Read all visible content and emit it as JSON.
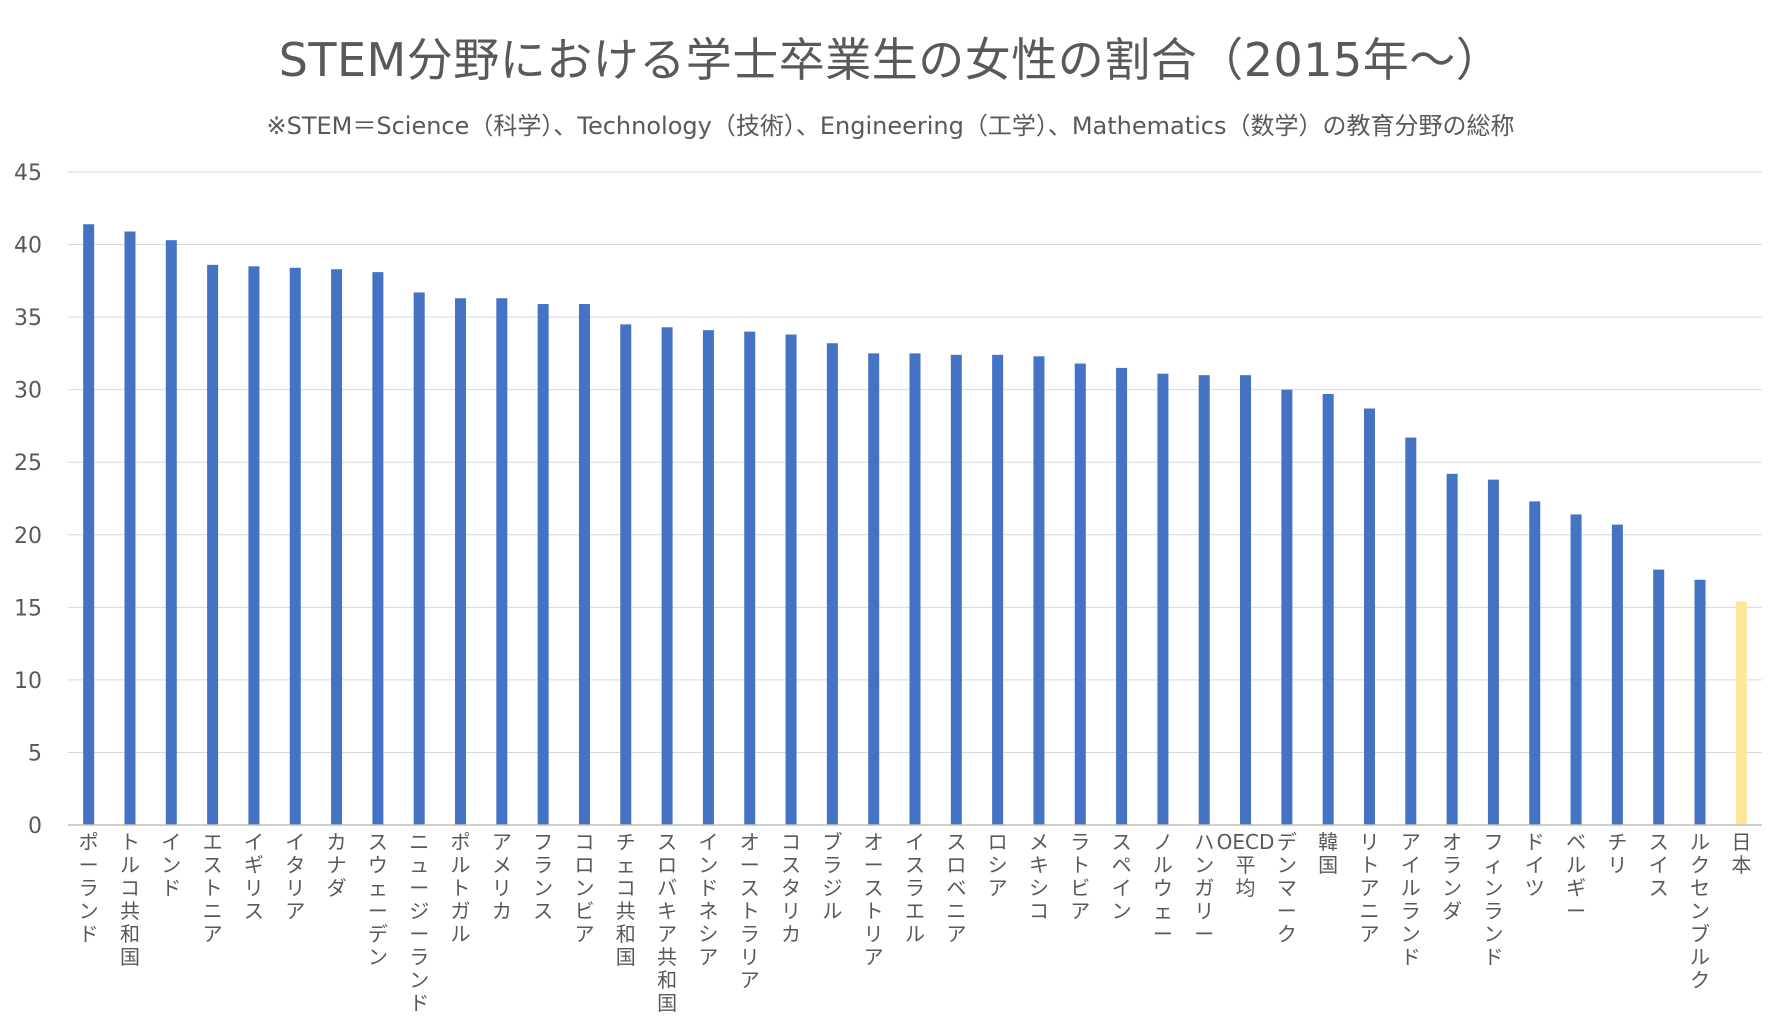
{
  "chart_data": {
    "type": "bar",
    "title": "STEM分野における学士卒業生の女性の割合（2015年～）",
    "subtitle": "※STEM＝Science（科学）、Technology（技術）、Engineering（工学）、Mathematics（数学）の教育分野の総称",
    "ylim": [
      0,
      45
    ],
    "yticks": [
      0,
      5,
      10,
      15,
      20,
      25,
      30,
      35,
      40,
      45
    ],
    "grid": true,
    "categories": [
      "ポーランド",
      "トルコ共和国",
      "インド",
      "エストニア",
      "イギリス",
      "イタリア",
      "カナダ",
      "スウェーデン",
      "ニュージーランド",
      "ポルトガル",
      "アメリカ",
      "フランス",
      "コロンビア",
      "チェコ共和国",
      "スロバキア共和国",
      "インドネシア",
      "オーストラリア",
      "コスタリカ",
      "ブラジル",
      "オーストリア",
      "イスラエル",
      "スロベニア",
      "ロシア",
      "メキシコ",
      "ラトビア",
      "スペイン",
      "ノルウェー",
      "ハンガリー",
      "OECD平均",
      "デンマーク",
      "韓国",
      "リトアニア",
      "アイルランド",
      "オランダ",
      "フィンランド",
      "ドイツ",
      "ベルギー",
      "チリ",
      "スイス",
      "ルクセンブルク",
      "日本"
    ],
    "values": [
      41.4,
      40.9,
      40.3,
      38.6,
      38.5,
      38.4,
      38.3,
      38.1,
      36.7,
      36.3,
      36.3,
      35.9,
      35.9,
      34.5,
      34.3,
      34.1,
      34.0,
      33.8,
      33.2,
      32.5,
      32.5,
      32.4,
      32.4,
      32.3,
      31.8,
      31.5,
      31.1,
      31.0,
      31.0,
      30.0,
      29.7,
      28.7,
      26.7,
      24.2,
      23.8,
      22.3,
      21.4,
      20.7,
      17.6,
      16.9,
      15.4
    ],
    "colors": {
      "bar": "#4472c4",
      "highlight": "#ffe699",
      "grid": "#d9d9d9",
      "axis": "#bfbfbf"
    },
    "highlight_category": "日本"
  }
}
